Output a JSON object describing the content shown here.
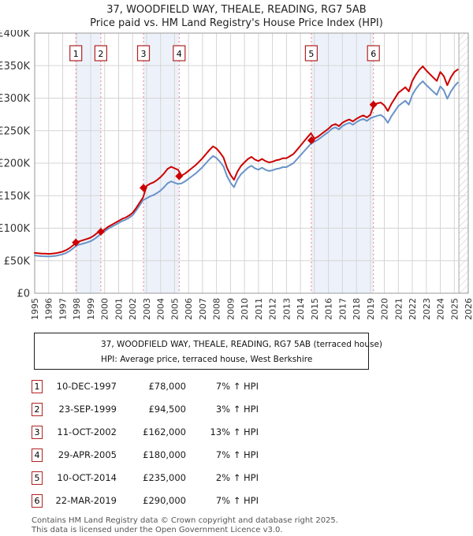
{
  "page_title": "37, WOODFIELD WAY, THEALE, READING, RG7 5AB",
  "page_subtitle": "Price paid vs. HM Land Registry's House Price Index (HPI)",
  "chart_data": {
    "type": "line",
    "title": "37, WOODFIELD WAY, THEALE, READING, RG7 5AB",
    "subtitle": "Price paid vs. HM Land Registry's House Price Index (HPI)",
    "grid": true,
    "legend_position": "below",
    "x_range": [
      1995,
      2026
    ],
    "ylim_k": [
      0,
      400
    ],
    "y_ticks_k": [
      0,
      50,
      100,
      150,
      200,
      250,
      300,
      350,
      400
    ],
    "y_tick_labels": [
      "£0",
      "£50K",
      "£100K",
      "£150K",
      "£200K",
      "£250K",
      "£300K",
      "£350K",
      "£400K"
    ],
    "x_tick_labels": [
      "1995",
      "1996",
      "1997",
      "1998",
      "1999",
      "2000",
      "2001",
      "2002",
      "2003",
      "2004",
      "2005",
      "2006",
      "2007",
      "2008",
      "2009",
      "2010",
      "2011",
      "2012",
      "2013",
      "2014",
      "2015",
      "2016",
      "2017",
      "2018",
      "2019",
      "2020",
      "2021",
      "2022",
      "2023",
      "2024",
      "2025",
      "2026"
    ],
    "series": [
      {
        "name": "37, WOODFIELD WAY, THEALE, READING, RG7 5AB (terraced house)",
        "data_name": "price-paid-line",
        "color": "#cc0000",
        "x_start": 1995.0,
        "x_step_years": 0.25,
        "values_k": [
          62,
          61.5,
          61,
          60.8,
          60.5,
          61,
          61.5,
          62.6,
          64,
          66.3,
          69.6,
          73.8,
          78.6,
          80.3,
          81.9,
          83.5,
          85.6,
          88.8,
          93.1,
          94.8,
          97.9,
          102,
          105.1,
          108.2,
          111.2,
          114.3,
          116.4,
          119.5,
          123.6,
          130.8,
          139.1,
          147.3,
          165,
          168.4,
          170.6,
          174,
          178.5,
          184.2,
          191,
          194.4,
          192.1,
          189.8,
          180.8,
          184,
          188.3,
          192.6,
          196.9,
          202.2,
          207.6,
          214,
          220.4,
          225.8,
          222.6,
          216.1,
          208.7,
          192.6,
          181.9,
          174.4,
          187.3,
          195.8,
          201.2,
          206.5,
          209.7,
          205.4,
          203.3,
          206.5,
          203.3,
          201.2,
          202.2,
          204.4,
          205.4,
          207.6,
          207.6,
          210.8,
          214,
          220.4,
          226.8,
          233.3,
          239.7,
          246.1,
          237.7,
          240.7,
          244.8,
          248.9,
          253,
          258.1,
          260.1,
          257,
          262.1,
          265.2,
          267.2,
          264.2,
          268.3,
          271.3,
          273.4,
          270.3,
          274.4,
          290,
          292.1,
          293.2,
          288.9,
          280.3,
          291,
          299.6,
          308.2,
          312.4,
          316.7,
          310.3,
          326.4,
          336,
          343.5,
          348.8,
          342.4,
          337.1,
          331.7,
          326.4,
          340.3,
          333.8,
          319.9,
          331.7,
          340.3,
          344
        ]
      },
      {
        "name": "HPI: Average price, terraced house, West Berkshire",
        "data_name": "hpi-line",
        "color": "#6a93c8",
        "x_start": 1995.0,
        "x_step_years": 0.25,
        "values_k": [
          58,
          57.5,
          57,
          56.8,
          56.5,
          57,
          57.5,
          58.5,
          60,
          62,
          65,
          69,
          73.5,
          75,
          76.5,
          78,
          80,
          83,
          87,
          92,
          95,
          99,
          102,
          105,
          108,
          111,
          113,
          116,
          120,
          127,
          135,
          143,
          146,
          149,
          151,
          154,
          158,
          163,
          169,
          172,
          170,
          168,
          169,
          172,
          176,
          180,
          184,
          189,
          194,
          200,
          206,
          211,
          208,
          202,
          195,
          180,
          170,
          163,
          175,
          183,
          188,
          193,
          196,
          192,
          190,
          193,
          190,
          188,
          189,
          191,
          192,
          194,
          194,
          197,
          200,
          206,
          212,
          218,
          224,
          230,
          233,
          236,
          240,
          244,
          248,
          253,
          255,
          252,
          257,
          260,
          262,
          259,
          263,
          266,
          268,
          265,
          269,
          271,
          273,
          274,
          270,
          262,
          272,
          280,
          288,
          292,
          296,
          290,
          305,
          314,
          321,
          326,
          320,
          315,
          310,
          305,
          318,
          312,
          299,
          310,
          318,
          324
        ]
      }
    ],
    "sale_markers": [
      {
        "num": "1",
        "year": 1997.94,
        "value_k": 78
      },
      {
        "num": "2",
        "year": 1999.73,
        "value_k": 94.5
      },
      {
        "num": "3",
        "year": 2002.78,
        "value_k": 162
      },
      {
        "num": "4",
        "year": 2005.33,
        "value_k": 180
      },
      {
        "num": "5",
        "year": 2014.78,
        "value_k": 235
      },
      {
        "num": "6",
        "year": 2019.22,
        "value_k": 290
      }
    ],
    "ownership_bands": [
      [
        1997.94,
        1999.73
      ],
      [
        2002.78,
        2005.33
      ],
      [
        2014.78,
        2019.22
      ]
    ],
    "future_band": [
      2025.33,
      2026
    ],
    "colors": {
      "price": "#cc0000",
      "hpi": "#6a93c8",
      "band": "#edf2fa",
      "grid": "#d5d5d5",
      "border": "#9a9a9a",
      "sale_line": "#f08080",
      "marker_box": "#b22222",
      "hatch": "#c4c4c4",
      "tick_text": "#333333"
    }
  },
  "legend": {
    "items": [
      {
        "label": "37, WOODFIELD WAY, THEALE, READING, RG7 5AB (terraced house)",
        "color": "#cc0000"
      },
      {
        "label": "HPI: Average price, terraced house, West Berkshire",
        "color": "#6a93c8"
      }
    ]
  },
  "table": {
    "rows": [
      {
        "num": "1",
        "date": "10-DEC-1997",
        "price": "£78,000",
        "hpi": "7% ↑ HPI"
      },
      {
        "num": "2",
        "date": "23-SEP-1999",
        "price": "£94,500",
        "hpi": "3% ↑ HPI"
      },
      {
        "num": "3",
        "date": "11-OCT-2002",
        "price": "£162,000",
        "hpi": "13% ↑ HPI"
      },
      {
        "num": "4",
        "date": "29-APR-2005",
        "price": "£180,000",
        "hpi": "7% ↑ HPI"
      },
      {
        "num": "5",
        "date": "10-OCT-2014",
        "price": "£235,000",
        "hpi": "2% ↑ HPI"
      },
      {
        "num": "6",
        "date": "22-MAR-2019",
        "price": "£290,000",
        "hpi": "7% ↑ HPI"
      }
    ]
  },
  "footer": {
    "line1": "Contains HM Land Registry data © Crown copyright and database right 2025.",
    "line2": "This data is licensed under the Open Government Licence v3.0."
  }
}
